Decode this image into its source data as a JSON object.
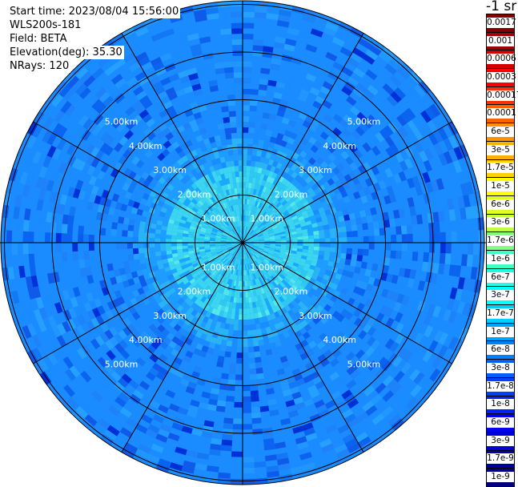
{
  "header": {
    "start_time": "Start time: 2023/08/04 15:56:00",
    "instrument": "WLS200s-181",
    "field": "Field: BETA",
    "elevation": "Elevation(deg): 35.30",
    "nrays": "NRays: 120"
  },
  "colorbar": {
    "unit_label": "-1 sr",
    "labels": [
      "0.0017",
      "0.001",
      "0.0006",
      "0.0003",
      "0.00017",
      "0.0001",
      "6e-5",
      "3e-5",
      "1.7e-5",
      "1e-5",
      "6e-6",
      "3e-6",
      "1.7e-6",
      "1e-6",
      "6e-7",
      "3e-7",
      "1.7e-7",
      "1e-7",
      "6e-8",
      "3e-8",
      "1.7e-8",
      "1e-8",
      "6e-9",
      "3e-9",
      "1.7e-9",
      "1e-9"
    ],
    "colors": [
      "#800000",
      "#a00000",
      "#d00000",
      "#ff0000",
      "#ff3000",
      "#ff6000",
      "#ff9000",
      "#ffb000",
      "#ffd000",
      "#ffff00",
      "#e0ff20",
      "#c0ff40",
      "#80ff80",
      "#40ffc0",
      "#20ffe0",
      "#00ffff",
      "#00d0ff",
      "#00a0ff",
      "#0080ff",
      "#0060ff",
      "#0040ff",
      "#0020ff",
      "#0000f0",
      "#0000d0",
      "#0000a0",
      "#000080"
    ]
  },
  "range_rings": {
    "labels": [
      "1.00km",
      "2.00km",
      "3.00km",
      "4.00km",
      "5.00km"
    ],
    "data_extent": "6.00km"
  },
  "colors": {
    "field_base": "#1a8cff",
    "field_inner": "#2ec8f0",
    "grid": "#000000"
  }
}
